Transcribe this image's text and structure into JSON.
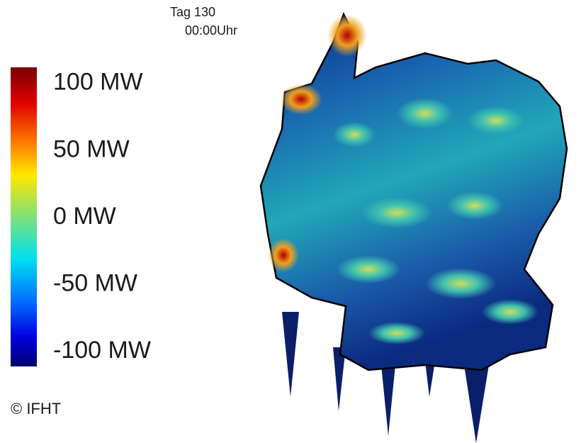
{
  "header": {
    "day": "Tag 130",
    "time": "00:00Uhr"
  },
  "colorbar": {
    "lim": [
      -111,
      112
    ],
    "ticks": [
      {
        "value": 100,
        "label": "100 MW"
      },
      {
        "value": 50,
        "label": "50 MW"
      },
      {
        "value": 0,
        "label": "0 MW"
      },
      {
        "value": -50,
        "label": "-50 MW"
      },
      {
        "value": -100,
        "label": "-100 MW"
      }
    ]
  },
  "footer": {
    "copyright": "© IFHT"
  }
}
